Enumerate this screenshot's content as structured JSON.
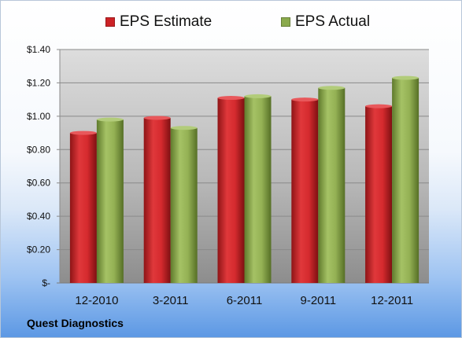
{
  "company": "Quest Diagnostics",
  "colors": {
    "estimate": "#cc2226",
    "actual": "#8aaa4c",
    "plot_top": "#d9d9d9",
    "plot_bottom": "#8c8c8c"
  },
  "chart_data": {
    "type": "bar",
    "title": "",
    "xlabel": "",
    "ylabel": "",
    "categories": [
      "12-2010",
      "3-2011",
      "6-2011",
      "9-2011",
      "12-2011"
    ],
    "series": [
      {
        "name": "EPS Estimate",
        "values": [
          0.9,
          0.99,
          1.11,
          1.1,
          1.06
        ]
      },
      {
        "name": "EPS Actual",
        "values": [
          0.98,
          0.93,
          1.12,
          1.17,
          1.23
        ]
      }
    ],
    "ylim": [
      0,
      1.4
    ],
    "yticks": [
      {
        "value": 0,
        "label": "$-"
      },
      {
        "value": 0.2,
        "label": "$0.20"
      },
      {
        "value": 0.4,
        "label": "$0.40"
      },
      {
        "value": 0.6,
        "label": "$0.60"
      },
      {
        "value": 0.8,
        "label": "$0.80"
      },
      {
        "value": 1.0,
        "label": "$1.00"
      },
      {
        "value": 1.2,
        "label": "$1.20"
      },
      {
        "value": 1.4,
        "label": "$1.40"
      }
    ],
    "grid": true,
    "legend_position": "top"
  }
}
